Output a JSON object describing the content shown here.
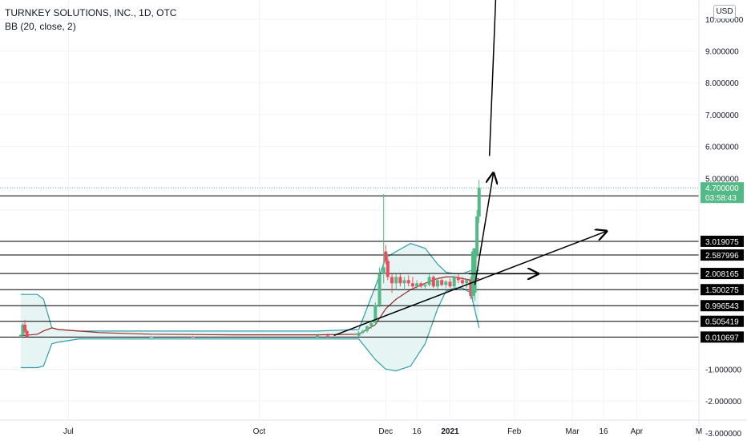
{
  "legend": {
    "symbol": "TURNKEY SOLUTIONS, INC., 1D, OTC",
    "indicator": "BB (20, close, 2)"
  },
  "currency_button": "USD",
  "colors": {
    "up": "#53b987",
    "down": "#eb4d5c",
    "band": "#2f9ea8",
    "band_fill": "#e6f4f4",
    "basis": "#9c2a2a",
    "drawing": "#000000",
    "last_price_bg": "#53b987"
  },
  "chart_data": {
    "type": "candlestick",
    "y_tick_labels": [
      "10.000000",
      "9.000000",
      "8.000000",
      "7.000000",
      "6.000000",
      "5.000000",
      "-1.000000",
      "-2.000000",
      "-3.000000"
    ],
    "x_tick_labels": [
      "Jul",
      "Oct",
      "Dec",
      "16",
      "2021",
      "Feb",
      "Mar",
      "16",
      "Apr",
      "M"
    ],
    "x_ticks": [
      {
        "label": "Jul",
        "day": 0
      },
      {
        "label": "Oct",
        "day": 92
      },
      {
        "label": "Dec",
        "day": 153
      },
      {
        "label": "16",
        "day": 168
      },
      {
        "label": "2021",
        "day": 184
      },
      {
        "label": "Feb",
        "day": 215
      },
      {
        "label": "Mar",
        "day": 243
      },
      {
        "label": "16",
        "day": 258
      },
      {
        "label": "Apr",
        "day": 274
      },
      {
        "label": "M",
        "day": 304
      }
    ],
    "ylim": [
      -2.6,
      10.6
    ],
    "xlim": [
      -33,
      304
    ],
    "last_price": {
      "value": "4.700000",
      "countdown": "03:58:43"
    },
    "horizontal_lines": [
      {
        "value": 4.448677,
        "label": "4.448677"
      },
      {
        "value": 3.019075,
        "label": "3.019075"
      },
      {
        "value": 2.587996,
        "label": "2.587996"
      },
      {
        "value": 2.008165,
        "label": "2.008165"
      },
      {
        "value": 1.500275,
        "label": "1.500275"
      },
      {
        "value": 0.996543,
        "label": "0.996543"
      },
      {
        "value": 0.505419,
        "label": "0.505419"
      },
      {
        "value": 0.010697,
        "label": "0.010697"
      }
    ],
    "candles": [
      {
        "d": -23,
        "o": 0.03,
        "h": 0.1,
        "l": 0.0,
        "c": 0.08
      },
      {
        "d": -22,
        "o": 0.08,
        "h": 0.45,
        "l": 0.05,
        "c": 0.4
      },
      {
        "d": -21,
        "o": 0.4,
        "h": 0.55,
        "l": 0.15,
        "c": 0.2
      },
      {
        "d": -20,
        "o": 0.2,
        "h": 0.25,
        "l": 0.0,
        "c": 0.02
      },
      {
        "d": 40,
        "o": 0.01,
        "h": 0.05,
        "l": 0.0,
        "c": 0.02
      },
      {
        "d": 60,
        "o": 0.02,
        "h": 0.05,
        "l": 0.0,
        "c": 0.01
      },
      {
        "d": 120,
        "o": 0.01,
        "h": 0.08,
        "l": 0.0,
        "c": 0.06
      },
      {
        "d": 125,
        "o": 0.06,
        "h": 0.12,
        "l": 0.0,
        "c": 0.05
      },
      {
        "d": 140,
        "o": 0.05,
        "h": 0.2,
        "l": 0.02,
        "c": 0.15
      },
      {
        "d": 142,
        "o": 0.15,
        "h": 0.25,
        "l": 0.1,
        "c": 0.2
      },
      {
        "d": 144,
        "o": 0.2,
        "h": 0.38,
        "l": 0.15,
        "c": 0.35
      },
      {
        "d": 146,
        "o": 0.35,
        "h": 0.5,
        "l": 0.28,
        "c": 0.45
      },
      {
        "d": 148,
        "o": 0.45,
        "h": 1.1,
        "l": 0.4,
        "c": 1.0
      },
      {
        "d": 150,
        "o": 1.0,
        "h": 2.2,
        "l": 0.95,
        "c": 2.0
      },
      {
        "d": 152,
        "o": 2.0,
        "h": 4.5,
        "l": 1.7,
        "c": 2.2
      },
      {
        "d": 153,
        "o": 2.7,
        "h": 2.9,
        "l": 2.3,
        "c": 2.4
      },
      {
        "d": 154,
        "o": 2.4,
        "h": 2.5,
        "l": 1.8,
        "c": 1.9
      },
      {
        "d": 156,
        "o": 1.9,
        "h": 2.0,
        "l": 1.4,
        "c": 1.7
      },
      {
        "d": 158,
        "o": 1.7,
        "h": 2.0,
        "l": 1.5,
        "c": 1.9
      },
      {
        "d": 160,
        "o": 1.9,
        "h": 2.0,
        "l": 1.6,
        "c": 1.7
      },
      {
        "d": 162,
        "o": 1.7,
        "h": 1.9,
        "l": 1.5,
        "c": 1.8
      },
      {
        "d": 164,
        "o": 1.8,
        "h": 1.95,
        "l": 1.6,
        "c": 1.7
      },
      {
        "d": 166,
        "o": 1.7,
        "h": 1.9,
        "l": 1.5,
        "c": 1.6
      },
      {
        "d": 168,
        "o": 1.6,
        "h": 1.8,
        "l": 1.5,
        "c": 1.7
      },
      {
        "d": 170,
        "o": 1.7,
        "h": 1.75,
        "l": 1.55,
        "c": 1.6
      },
      {
        "d": 172,
        "o": 1.6,
        "h": 1.7,
        "l": 1.5,
        "c": 1.65
      },
      {
        "d": 174,
        "o": 1.65,
        "h": 2.0,
        "l": 1.6,
        "c": 1.9
      },
      {
        "d": 176,
        "o": 1.9,
        "h": 1.95,
        "l": 1.55,
        "c": 1.6
      },
      {
        "d": 178,
        "o": 1.6,
        "h": 1.85,
        "l": 1.5,
        "c": 1.8
      },
      {
        "d": 180,
        "o": 1.8,
        "h": 1.85,
        "l": 1.6,
        "c": 1.65
      },
      {
        "d": 182,
        "o": 1.65,
        "h": 1.8,
        "l": 1.55,
        "c": 1.75
      },
      {
        "d": 184,
        "o": 1.75,
        "h": 1.85,
        "l": 1.55,
        "c": 1.6
      },
      {
        "d": 186,
        "o": 1.6,
        "h": 1.95,
        "l": 1.55,
        "c": 1.9
      },
      {
        "d": 188,
        "o": 1.9,
        "h": 2.0,
        "l": 1.7,
        "c": 1.8
      },
      {
        "d": 190,
        "o": 1.8,
        "h": 1.9,
        "l": 1.65,
        "c": 1.7
      },
      {
        "d": 192,
        "o": 1.7,
        "h": 1.85,
        "l": 1.55,
        "c": 1.8
      },
      {
        "d": 194,
        "o": 1.8,
        "h": 1.9,
        "l": 1.2,
        "c": 1.3
      },
      {
        "d": 195,
        "o": 1.3,
        "h": 2.8,
        "l": 1.2,
        "c": 2.7
      },
      {
        "d": 196,
        "o": 1.4,
        "h": 2.8,
        "l": 1.15,
        "c": 2.8
      },
      {
        "d": 197,
        "o": 2.6,
        "h": 4.0,
        "l": 2.5,
        "c": 3.8
      },
      {
        "d": 198,
        "o": 3.8,
        "h": 4.95,
        "l": 3.6,
        "c": 4.7
      }
    ],
    "bollinger": {
      "days": [
        -23,
        -15,
        -12,
        -8,
        -5,
        5,
        15,
        40,
        80,
        120,
        140,
        148,
        153,
        158,
        165,
        172,
        178,
        182,
        186,
        190,
        194,
        198
      ],
      "upper": [
        1.35,
        1.35,
        1.2,
        0.3,
        0.25,
        0.2,
        0.2,
        0.2,
        0.2,
        0.2,
        0.25,
        1.6,
        2.5,
        2.7,
        2.95,
        2.8,
        2.3,
        2.05,
        2.0,
        2.0,
        2.1,
        2.1
      ],
      "basis": [
        0.05,
        0.1,
        0.2,
        0.3,
        0.25,
        0.2,
        0.15,
        0.1,
        0.08,
        0.08,
        0.1,
        0.4,
        0.9,
        1.2,
        1.5,
        1.7,
        1.85,
        1.9,
        1.9,
        1.85,
        1.8,
        1.85
      ],
      "lower": [
        -0.95,
        -0.95,
        -0.9,
        -0.2,
        -0.15,
        -0.05,
        -0.05,
        -0.05,
        -0.05,
        -0.05,
        -0.05,
        -0.7,
        -1.0,
        -1.05,
        -0.9,
        -0.2,
        0.9,
        1.45,
        1.55,
        1.55,
        1.4,
        0.3
      ]
    },
    "trend_lines": [
      {
        "x1": 128,
        "y1": 0.06,
        "x2": 260,
        "y2": 3.35
      },
      {
        "x1": 193,
        "y1": 2.0,
        "x2": 227,
        "y2": 2.0
      },
      {
        "x1": 196,
        "y1": 1.65,
        "x2": 205,
        "y2": 5.2
      },
      {
        "x1": 203,
        "y1": 5.7,
        "x2": 206,
        "y2": 10.6
      }
    ]
  }
}
